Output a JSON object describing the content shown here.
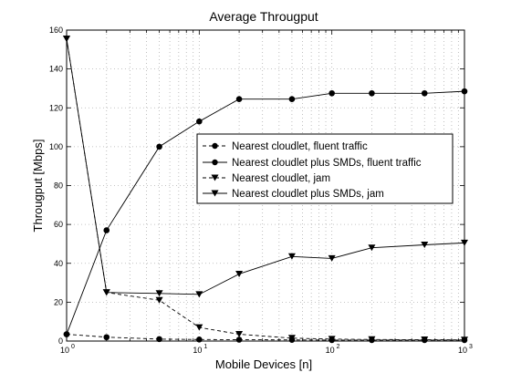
{
  "chart_data": {
    "type": "line",
    "title": "Average Througput",
    "xlabel": "Mobile Devices [n]",
    "ylabel": "Througput [Mbps]",
    "xscale": "log",
    "xlim": [
      1,
      1000
    ],
    "ylim": [
      0,
      160
    ],
    "x_ticks": [
      {
        "base": "10",
        "exp": "0",
        "value": 1
      },
      {
        "base": "10",
        "exp": "1",
        "value": 10
      },
      {
        "base": "10",
        "exp": "2",
        "value": 100
      },
      {
        "base": "10",
        "exp": "3",
        "value": 1000
      }
    ],
    "y_ticks": [
      0,
      20,
      40,
      60,
      80,
      100,
      120,
      140,
      160
    ],
    "grid": true,
    "legend_position": "center-right",
    "series": [
      {
        "name": "Nearest cloudlet, fluent traffic",
        "marker": "circle",
        "line": "dashed",
        "x": [
          1,
          2,
          5,
          10,
          20,
          50,
          100,
          200,
          500,
          1000
        ],
        "y": [
          3.5,
          2.0,
          1.0,
          0.8,
          0.7,
          0.6,
          0.5,
          0.5,
          0.5,
          0.5
        ]
      },
      {
        "name": "Nearest cloudlet plus SMDs, fluent traffic",
        "marker": "circle",
        "line": "solid",
        "x": [
          1,
          2,
          5,
          10,
          20,
          50,
          100,
          200,
          500,
          1000
        ],
        "y": [
          3.5,
          57,
          100,
          113,
          124.5,
          124.5,
          127.5,
          127.5,
          127.5,
          128.5
        ]
      },
      {
        "name": "Nearest cloudlet, jam",
        "marker": "triangle-down",
        "line": "dashed",
        "x": [
          1,
          2,
          5,
          10,
          20,
          50,
          100,
          200,
          500,
          1000
        ],
        "y": [
          155.5,
          25,
          21,
          7,
          3.5,
          1.5,
          1.0,
          0.8,
          0.7,
          0.6
        ]
      },
      {
        "name": "Nearest cloudlet plus SMDs, jam",
        "marker": "triangle-down",
        "line": "solid",
        "x": [
          1,
          2,
          5,
          10,
          20,
          50,
          100,
          200,
          500,
          1000
        ],
        "y": [
          155.5,
          25,
          24.5,
          24,
          34.5,
          43.5,
          42.5,
          48,
          49.5,
          50.5
        ]
      }
    ]
  }
}
